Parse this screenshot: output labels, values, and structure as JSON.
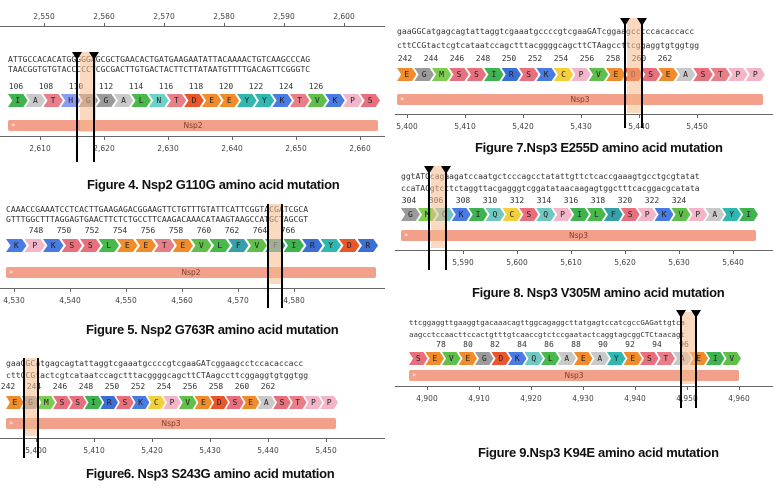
{
  "figures": [
    {
      "id": "fig4",
      "caption": "Figure 4. Nsp2 G110G amino acid mutation",
      "top_ticks": [
        "2,550",
        "2,560",
        "2,570",
        "2,580",
        "2,590",
        "2,600"
      ],
      "seq_top": "ATTGCCACACATGGGGGAGCGCTGAACACTGATGAAGAATATTACAAAACTGTCAAGCCCAG",
      "seq_bottom": "TAACGGTGTGTACCCCCTCGCGACTTGTGACTACTTCTTATAATGTTTTGACAGTTCGGGTC",
      "aa_numbers": [
        "106",
        "108",
        "110",
        "112",
        "114",
        "116",
        "118",
        "120",
        "122",
        "124",
        "126"
      ],
      "aa": [
        "I",
        "A",
        "T",
        "H",
        "G",
        "G",
        "A",
        "L",
        "N",
        "T",
        "D",
        "E",
        "E",
        "Y",
        "Y",
        "K",
        "T",
        "V",
        "K",
        "P",
        "S"
      ],
      "feature": "Nsp2",
      "bottom_ticks": [
        "2,610",
        "2,620",
        "2,630",
        "2,640",
        "2,650",
        "2,660"
      ]
    },
    {
      "id": "fig5",
      "caption": "Figure 5. Nsp2 G763R amino acid mutation",
      "seq_top": "CAAACCGAAATCCTCACTTGAAGAGACGGAAGTTCTGTTTGTATTCATTCGGTACGATCGCA",
      "seq_bottom": "GTTTGGCTTTAGGAGTGAACTTCTCTGCCTTCAAGACAAACATAAGTAAGCCATGCTAGCGT",
      "aa_numbers": [
        "748",
        "750",
        "752",
        "754",
        "756",
        "758",
        "760",
        "762",
        "764",
        "766"
      ],
      "aa": [
        "K",
        "P",
        "K",
        "S",
        "S",
        "L",
        "E",
        "E",
        "T",
        "E",
        "V",
        "L",
        "F",
        "V",
        "F",
        "I",
        "R",
        "Y",
        "D",
        "R"
      ],
      "feature": "Nsp2",
      "bottom_ticks": [
        "4,530",
        "4,540",
        "4,550",
        "4,560",
        "4,570",
        "4,580"
      ]
    },
    {
      "id": "fig6",
      "caption": "Figure6. Nsp3 S243G amino acid mutation",
      "seq_top": "gaaGGCatgagcagtattaggtcgaaatgccccgtcgaaGATcggaagcctccacaccacc",
      "seq_bottom": "cttCCGtactcgtcataatccagctttacggggcagcttCTAagccttcggaggtgtggtgg",
      "aa_numbers": [
        "242",
        "244",
        "246",
        "248",
        "250",
        "252",
        "254",
        "256",
        "258",
        "260",
        "262"
      ],
      "aa": [
        "E",
        "G",
        "M",
        "S",
        "S",
        "I",
        "R",
        "S",
        "K",
        "C",
        "P",
        "V",
        "E",
        "D",
        "S",
        "E",
        "A",
        "S",
        "T",
        "P",
        "P"
      ],
      "feature": "Nsp3",
      "bottom_ticks": [
        "5,400",
        "5,410",
        "5,420",
        "5,430",
        "5,440",
        "5,450"
      ]
    },
    {
      "id": "fig7",
      "caption": "Figure 7.Nsp3 E255D  amino acid mutation",
      "seq_top": "gaaGGCatgagcagtattaggtcgaaatgccccgtcgaaGATcggaagcctccacaccacc",
      "seq_bottom": "cttCCGtactcgtcataatccagctttacggggcagcttCTAagccttcggaggtgtggtgg",
      "aa_numbers": [
        "242",
        "244",
        "246",
        "248",
        "250",
        "252",
        "254",
        "256",
        "258",
        "260",
        "262"
      ],
      "aa": [
        "E",
        "G",
        "M",
        "S",
        "S",
        "I",
        "R",
        "S",
        "K",
        "C",
        "P",
        "V",
        "E",
        "D",
        "S",
        "E",
        "A",
        "S",
        "T",
        "P",
        "P"
      ],
      "feature": "Nsp3",
      "bottom_ticks": [
        "5,400",
        "5,410",
        "5,420",
        "5,430",
        "5,440",
        "5,450"
      ]
    },
    {
      "id": "fig8",
      "caption": "Figure 8. Nsp3 V305M amino acid mutation",
      "seq_top": "ggtATGcagaagatccaatgctcccagcctatattgttctcaccgaaagtgcctgcgtatat",
      "seq_bottom": "ccaTACgtcttctaggttacgagggtcggatataacaagagtggctttcacggacgcatata",
      "aa_numbers": [
        "304",
        "306",
        "308",
        "310",
        "312",
        "314",
        "316",
        "318",
        "320",
        "322",
        "324"
      ],
      "aa": [
        "G",
        "M",
        "Q",
        "K",
        "I",
        "Q",
        "C",
        "S",
        "Q",
        "P",
        "I",
        "L",
        "F",
        "S",
        "P",
        "K",
        "V",
        "P",
        "A",
        "Y",
        "I"
      ],
      "feature": "Nsp3",
      "bottom_ticks": [
        "5,590",
        "5,600",
        "5,610",
        "5,620",
        "5,630",
        "5,640"
      ]
    },
    {
      "id": "fig9",
      "caption": "Figure 9.Nsp3 K94E  amino acid mutation",
      "seq_top": "ttcggaggttgaaggtgacaaacagttggcagaggcttatgagtccatcgccGAGattgtca",
      "seq_bottom": "aagcctccaacttccactgtttgtcaaccgtctccgaatactcaggtagcggCTCtaacagt",
      "aa_numbers": [
        "78",
        "80",
        "82",
        "84",
        "86",
        "88",
        "90",
        "92",
        "94",
        "96"
      ],
      "aa": [
        "S",
        "E",
        "V",
        "E",
        "G",
        "D",
        "K",
        "Q",
        "L",
        "A",
        "E",
        "A",
        "Y",
        "E",
        "S",
        "T",
        "A",
        "E",
        "I",
        "V"
      ],
      "feature": "Nsp3",
      "bottom_ticks": [
        "4,900",
        "4,910",
        "4,920",
        "4,930",
        "4,940",
        "4,950",
        "4,960"
      ]
    }
  ],
  "aa_colors": {
    "A": "#c9c9c9",
    "R": "#3b6fd6",
    "N": "#6cd2c7",
    "D": "#e8562a",
    "C": "#f3d03a",
    "Q": "#70c8c0",
    "E": "#f08c2c",
    "G": "#9b9b9b",
    "H": "#8a9df0",
    "I": "#3fb34f",
    "L": "#49b94c",
    "K": "#4a7be3",
    "M": "#7ccd52",
    "F": "#36a0a8",
    "P": "#f2b6c8",
    "S": "#e86f7c",
    "T": "#e87f88",
    "W": "#4caf9e",
    "Y": "#2fb7b0",
    "V": "#5fbf4a"
  }
}
